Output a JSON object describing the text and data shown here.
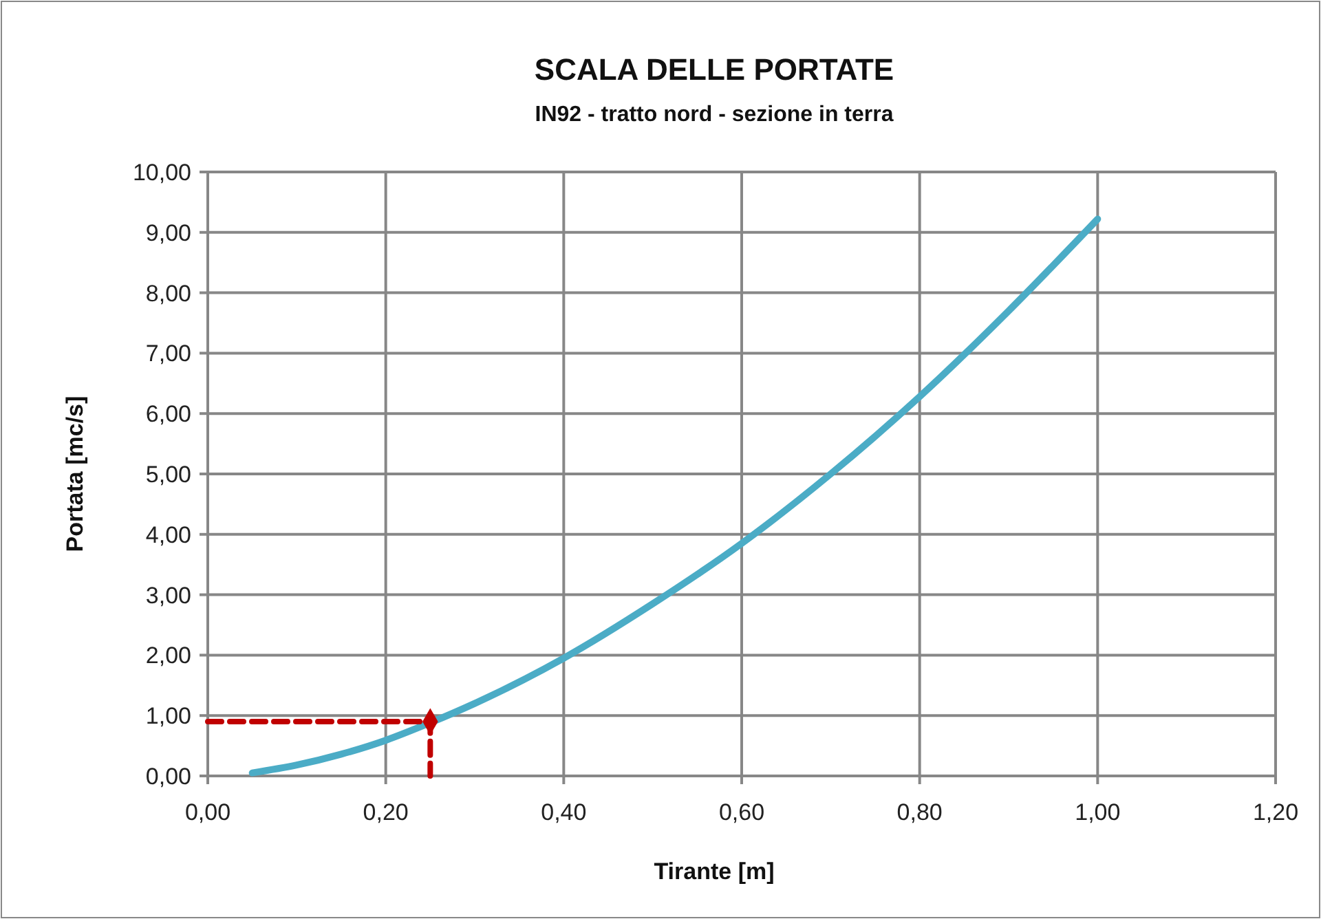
{
  "chart_data": {
    "type": "line",
    "title": "SCALA DELLE PORTATE",
    "subtitle": "IN92 - tratto nord - sezione in terra",
    "xlabel": "Tirante [m]",
    "ylabel": "Portata [mc/s]",
    "xlim": [
      0,
      1.2
    ],
    "ylim": [
      0,
      10
    ],
    "xticks": [
      {
        "value": 0,
        "label": "0,00"
      },
      {
        "value": 0.2,
        "label": "0,20"
      },
      {
        "value": 0.4,
        "label": "0,40"
      },
      {
        "value": 0.6,
        "label": "0,60"
      },
      {
        "value": 0.8,
        "label": "0,80"
      },
      {
        "value": 1,
        "label": "1,00"
      },
      {
        "value": 1.2,
        "label": "1,20"
      }
    ],
    "yticks": [
      {
        "value": 0,
        "label": "0,00"
      },
      {
        "value": 1,
        "label": "1,00"
      },
      {
        "value": 2,
        "label": "2,00"
      },
      {
        "value": 3,
        "label": "3,00"
      },
      {
        "value": 4,
        "label": "4,00"
      },
      {
        "value": 5,
        "label": "5,00"
      },
      {
        "value": 6,
        "label": "6,00"
      },
      {
        "value": 7,
        "label": "7,00"
      },
      {
        "value": 8,
        "label": "8,00"
      },
      {
        "value": 9,
        "label": "9,00"
      },
      {
        "value": 10,
        "label": "10,00"
      }
    ],
    "grid": true,
    "marker": "none",
    "line_style": "solid",
    "series": [
      {
        "color": "#4bacc6",
        "x": [
          0.05,
          0.1,
          0.15,
          0.2,
          0.25,
          0.3,
          0.4,
          0.5,
          0.6,
          0.7,
          0.8,
          0.9,
          1.0
        ],
        "values": [
          0.05,
          0.18,
          0.36,
          0.59,
          0.88,
          1.2,
          1.95,
          2.85,
          3.85,
          5.0,
          6.28,
          7.7,
          9.22
        ]
      },
      {
        "type": "line",
        "color": "#c00000",
        "line_style": "dashed",
        "x": [
          0,
          0.25,
          0.25
        ],
        "values": [
          0.9,
          0.9,
          0
        ]
      },
      {
        "type": "scatter",
        "color": "#c00000",
        "marker": "diamond",
        "x": [
          0.25
        ],
        "values": [
          0.9
        ]
      }
    ]
  }
}
